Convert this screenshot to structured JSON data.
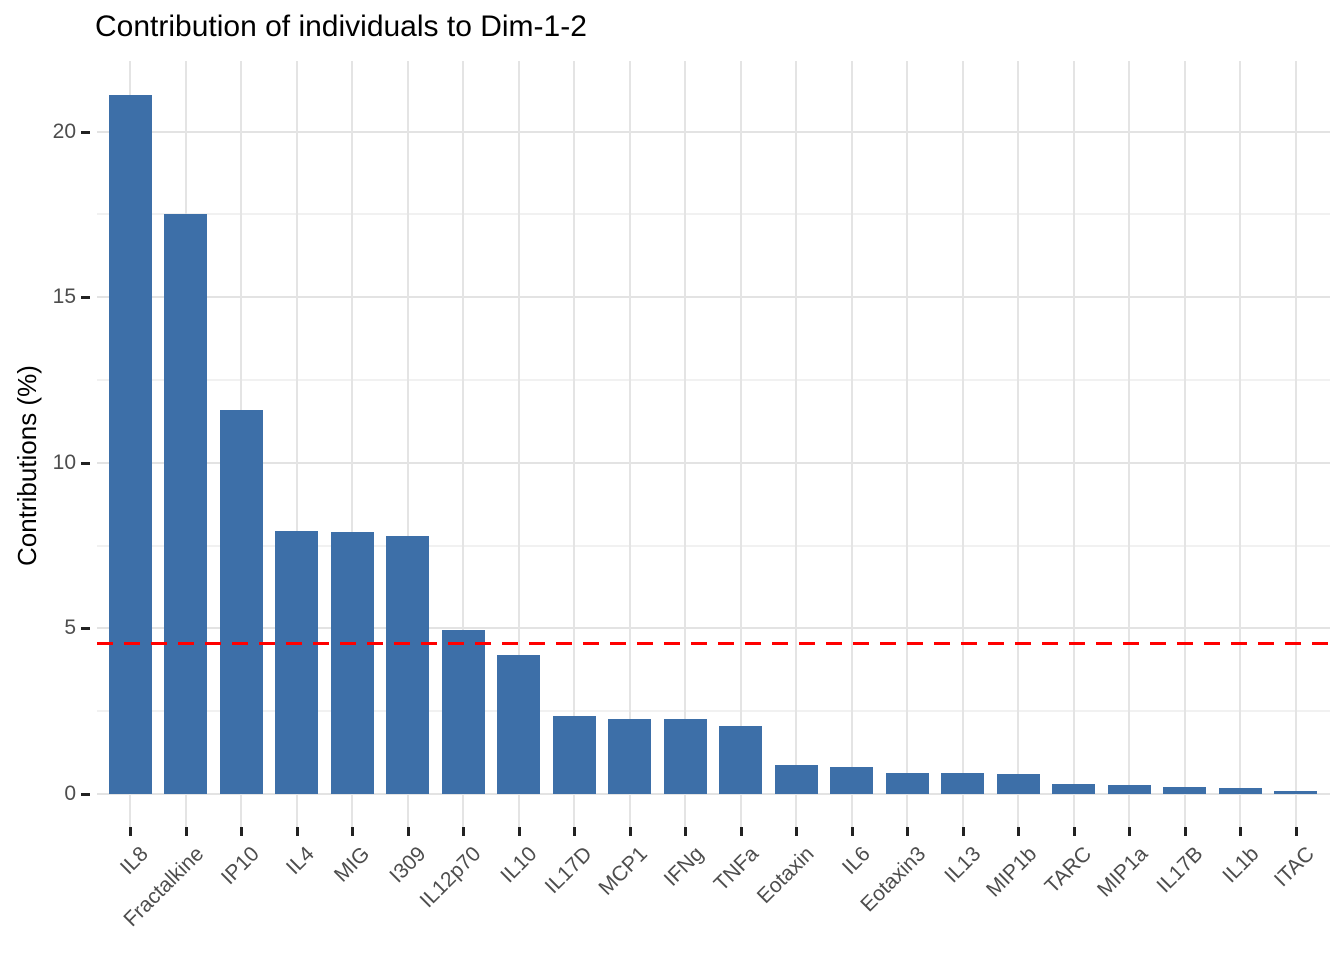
{
  "chart_data": {
    "type": "bar",
    "title": "Contribution of individuals to Dim-1-2",
    "xlabel": "",
    "ylabel": "Contributions (%)",
    "categories": [
      "IL8",
      "Fractalkine",
      "IP10",
      "IL4",
      "MIG",
      "I309",
      "IL12p70",
      "IL10",
      "IL17D",
      "MCP1",
      "IFNg",
      "TNFa",
      "Eotaxin",
      "IL6",
      "Eotaxin3",
      "IL13",
      "MIP1b",
      "TARC",
      "MIP1a",
      "IL17B",
      "IL1b",
      "ITAC"
    ],
    "values": [
      21.1,
      17.5,
      11.6,
      7.95,
      7.9,
      7.8,
      4.95,
      4.2,
      2.36,
      2.27,
      2.26,
      2.05,
      0.88,
      0.81,
      0.63,
      0.62,
      0.6,
      0.3,
      0.26,
      0.2,
      0.18,
      0.1
    ],
    "y_ticks": [
      0,
      5,
      10,
      15,
      20
    ],
    "y_minor_ticks": [
      2.5,
      7.5,
      12.5,
      17.5
    ],
    "ylim": [
      0,
      22.15
    ],
    "grid": true,
    "legend": "none",
    "x_tick_rotation": 45,
    "reference_line": {
      "value": 4.55,
      "style": "dashed",
      "color": "#ff0000"
    },
    "colors": {
      "bar_fill": "#3d6fa8",
      "grid_major": "#e3e3e3",
      "grid_minor": "#f1f1f1",
      "axis_text": "#4d4d4d",
      "tick_mark": "#222222",
      "title_text": "#000000",
      "background": "#ffffff"
    }
  }
}
